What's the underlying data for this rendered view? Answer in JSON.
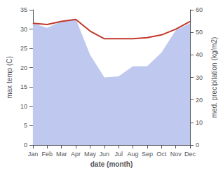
{
  "chart_data": {
    "type": "line",
    "xlabel": "date (month)",
    "ylabel": "max temp (C)",
    "y2label": "med. precipitation (kg/m2)",
    "categories": [
      "Jan",
      "Feb",
      "Mar",
      "Apr",
      "May",
      "Jun",
      "Jul",
      "Aug",
      "Sep",
      "Oct",
      "Nov",
      "Dec"
    ],
    "series": [
      {
        "type": "area",
        "axis": "y2",
        "color": "#bfc9f0",
        "values": [
          54.0,
          52.0,
          55.0,
          56.0,
          40.0,
          30.0,
          30.5,
          35.0,
          35.0,
          41.0,
          51.0,
          54.0
        ]
      },
      {
        "type": "line",
        "color": "#c0392b",
        "values": [
          31.5,
          31.2,
          32.0,
          32.5,
          29.5,
          27.5,
          27.5,
          27.5,
          27.8,
          28.5,
          30.0,
          32.0
        ]
      }
    ],
    "ylim": [
      0,
      35
    ],
    "yticks": [
      0,
      5,
      10,
      15,
      20,
      25,
      30,
      35
    ],
    "y2lim": [
      0,
      60
    ],
    "y2ticks": [
      0,
      10,
      20,
      30,
      40,
      50,
      60
    ],
    "grid": false
  }
}
